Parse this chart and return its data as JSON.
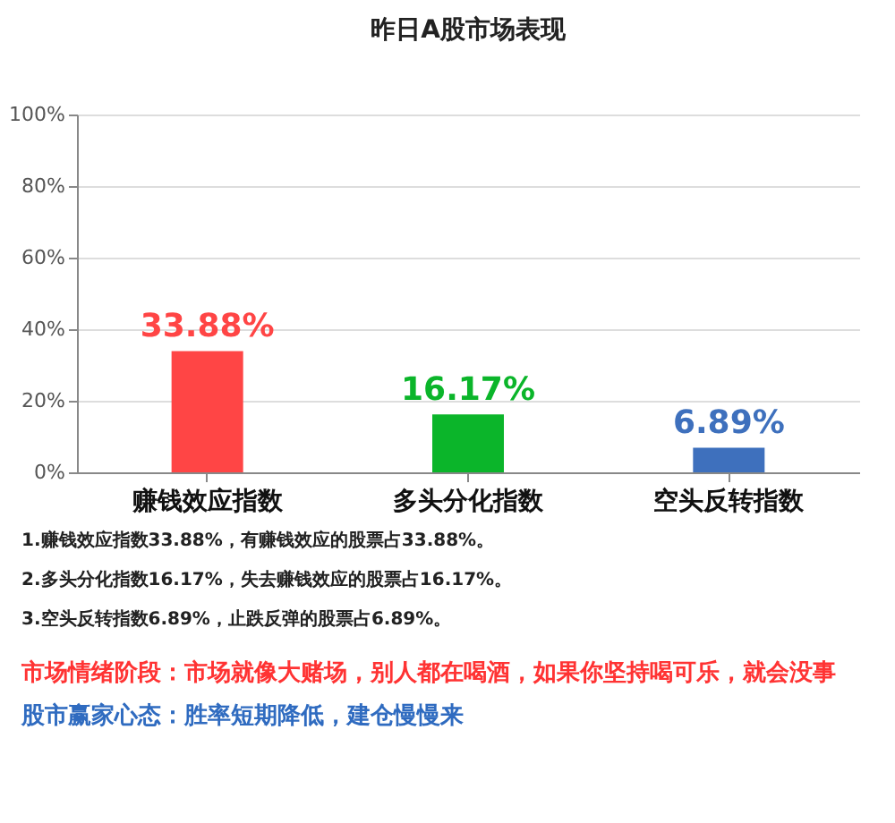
{
  "chart_data": {
    "type": "bar",
    "title": "昨日A股市场表现",
    "categories": [
      "赚钱效应指数",
      "多头分化指数",
      "空头反转指数"
    ],
    "values": [
      33.88,
      16.17,
      6.89
    ],
    "colors": [
      "#ff4545",
      "#0bb52a",
      "#3e70bd"
    ],
    "value_labels": [
      "33.88%",
      "16.17%",
      "6.89%"
    ],
    "ylim": [
      0,
      100
    ],
    "yticks": [
      {
        "value": 0,
        "label": "0%"
      },
      {
        "value": 20,
        "label": "20%"
      },
      {
        "value": 40,
        "label": "40%"
      },
      {
        "value": 60,
        "label": "60%"
      },
      {
        "value": 80,
        "label": "80%"
      },
      {
        "value": 100,
        "label": "100%"
      }
    ],
    "grid": "y",
    "annotations": [
      "1.赚钱效应指数33.88%，有赚钱效应的股票占33.88%。",
      "2.多头分化指数16.17%，失去赚钱效应的股票占16.17%。",
      "3.空头反转指数6.89%，止跌反弹的股票占6.89%。",
      "市场情绪阶段：市场就像大赌场，别人都在喝酒，如果你坚持喝可乐，就会没事",
      "股市赢家心态：胜率短期降低，建仓慢慢来"
    ]
  }
}
